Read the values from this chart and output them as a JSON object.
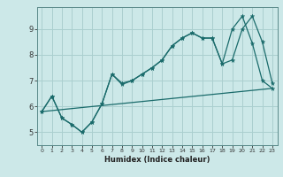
{
  "title": "",
  "xlabel": "Humidex (Indice chaleur)",
  "ylabel": "",
  "bg_color": "#cce8e8",
  "grid_color": "#aacfcf",
  "line_color": "#1a6b6b",
  "xlim": [
    -0.5,
    23.5
  ],
  "ylim": [
    4.5,
    9.85
  ],
  "xticks": [
    0,
    1,
    2,
    3,
    4,
    5,
    6,
    7,
    8,
    9,
    10,
    11,
    12,
    13,
    14,
    15,
    16,
    17,
    18,
    19,
    20,
    21,
    22,
    23
  ],
  "yticks": [
    5,
    6,
    7,
    8,
    9
  ],
  "series1_x": [
    0,
    1,
    2,
    3,
    4,
    5,
    6,
    7,
    8,
    9,
    10,
    11,
    12,
    13,
    14,
    15,
    16,
    17,
    18,
    19,
    20,
    21,
    22,
    23
  ],
  "series1_y": [
    5.8,
    6.4,
    5.55,
    5.3,
    5.0,
    5.4,
    6.1,
    7.25,
    6.9,
    7.0,
    7.25,
    7.5,
    7.8,
    8.35,
    8.65,
    8.85,
    8.65,
    8.65,
    7.65,
    7.8,
    9.0,
    9.5,
    8.5,
    6.9
  ],
  "series2_x": [
    0,
    1,
    2,
    3,
    4,
    5,
    6,
    7,
    8,
    9,
    10,
    11,
    12,
    13,
    14,
    15,
    16,
    17,
    18,
    19,
    20,
    21,
    22,
    23
  ],
  "series2_y": [
    5.8,
    6.4,
    5.55,
    5.3,
    5.0,
    5.4,
    6.1,
    7.25,
    6.85,
    7.0,
    7.25,
    7.5,
    7.8,
    8.35,
    8.65,
    8.85,
    8.65,
    8.65,
    7.65,
    9.0,
    9.5,
    8.45,
    7.0,
    6.7
  ],
  "series3_x": [
    0,
    23
  ],
  "series3_y": [
    5.8,
    6.7
  ]
}
